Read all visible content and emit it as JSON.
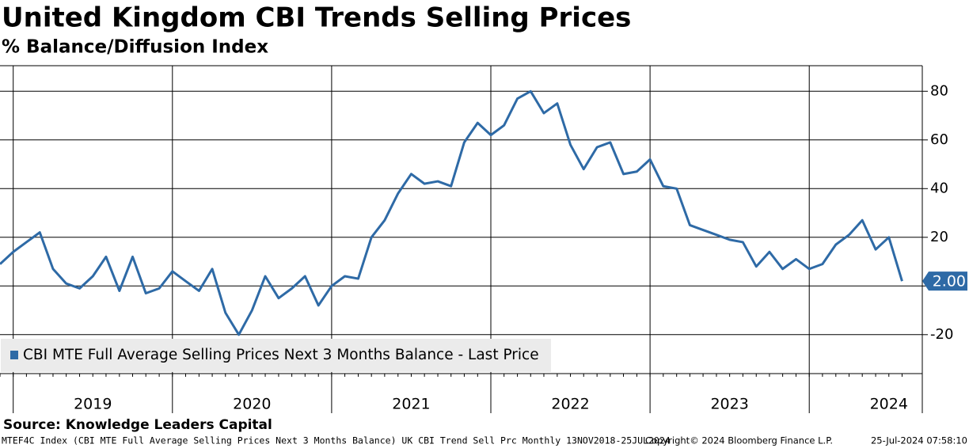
{
  "chart_data": {
    "type": "line",
    "title": "United Kingdom CBI Trends Selling Prices",
    "subtitle": "% Balance/Diffusion Index",
    "source": "Source: Knowledge Leaders Capital",
    "footer_left": "MTEF4C Index (CBI MTE Full Average Selling Prices Next 3 Months Balance) UK CBI Trend Sell Prc  Monthly 13NOV2018-25JUL2024",
    "footer_middle": "Copyright© 2024 Bloomberg Finance L.P.",
    "footer_right": "25-Jul-2024 07:58:10",
    "x": [
      2018.917,
      2019.0,
      2019.083,
      2019.167,
      2019.25,
      2019.333,
      2019.417,
      2019.5,
      2019.583,
      2019.667,
      2019.75,
      2019.833,
      2019.917,
      2020.0,
      2020.083,
      2020.167,
      2020.25,
      2020.333,
      2020.417,
      2020.5,
      2020.583,
      2020.667,
      2020.75,
      2020.833,
      2020.917,
      2021.0,
      2021.083,
      2021.167,
      2021.25,
      2021.333,
      2021.417,
      2021.5,
      2021.583,
      2021.667,
      2021.75,
      2021.833,
      2021.917,
      2022.0,
      2022.083,
      2022.167,
      2022.25,
      2022.333,
      2022.417,
      2022.5,
      2022.583,
      2022.667,
      2022.75,
      2022.833,
      2022.917,
      2023.0,
      2023.083,
      2023.167,
      2023.25,
      2023.333,
      2023.417,
      2023.5,
      2023.583,
      2023.667,
      2023.75,
      2023.833,
      2023.917,
      2024.0,
      2024.083,
      2024.167,
      2024.25,
      2024.333,
      2024.417,
      2024.5,
      2024.583
    ],
    "series": [
      {
        "name": "CBI MTE Full Average Selling Prices Next 3 Months Balance - Last Price",
        "color": "#2e6aa6",
        "values": [
          9,
          14,
          18,
          22,
          7,
          1,
          -1,
          4,
          12,
          -2,
          12,
          -3,
          -1,
          6,
          2,
          -2,
          7,
          -11,
          -20,
          -10,
          4,
          -5,
          -1,
          4,
          -8,
          0,
          4,
          3,
          20,
          27,
          38,
          46,
          42,
          43,
          41,
          59,
          67,
          62,
          66,
          77,
          80,
          71,
          75,
          58,
          48,
          57,
          59,
          46,
          47,
          52,
          41,
          40,
          25,
          23,
          21,
          19,
          18,
          8,
          14,
          7,
          11,
          7,
          9,
          17,
          21,
          27,
          15,
          20,
          2
        ]
      }
    ],
    "annotations": [
      {
        "value": 2,
        "label": "2.00"
      }
    ],
    "xlim": [
      2018.917,
      2024.71
    ],
    "xticks": [
      {
        "value": 2019.5,
        "label": "2019"
      },
      {
        "value": 2020.5,
        "label": "2020"
      },
      {
        "value": 2021.5,
        "label": "2021"
      },
      {
        "value": 2022.5,
        "label": "2022"
      },
      {
        "value": 2023.5,
        "label": "2023"
      },
      {
        "value": 2024.5,
        "label": "2024"
      }
    ],
    "ylim": [
      -36,
      90.5
    ],
    "yticks": [
      -20,
      0,
      20,
      40,
      60,
      80
    ],
    "grid": true,
    "legend": "bottom-left"
  }
}
